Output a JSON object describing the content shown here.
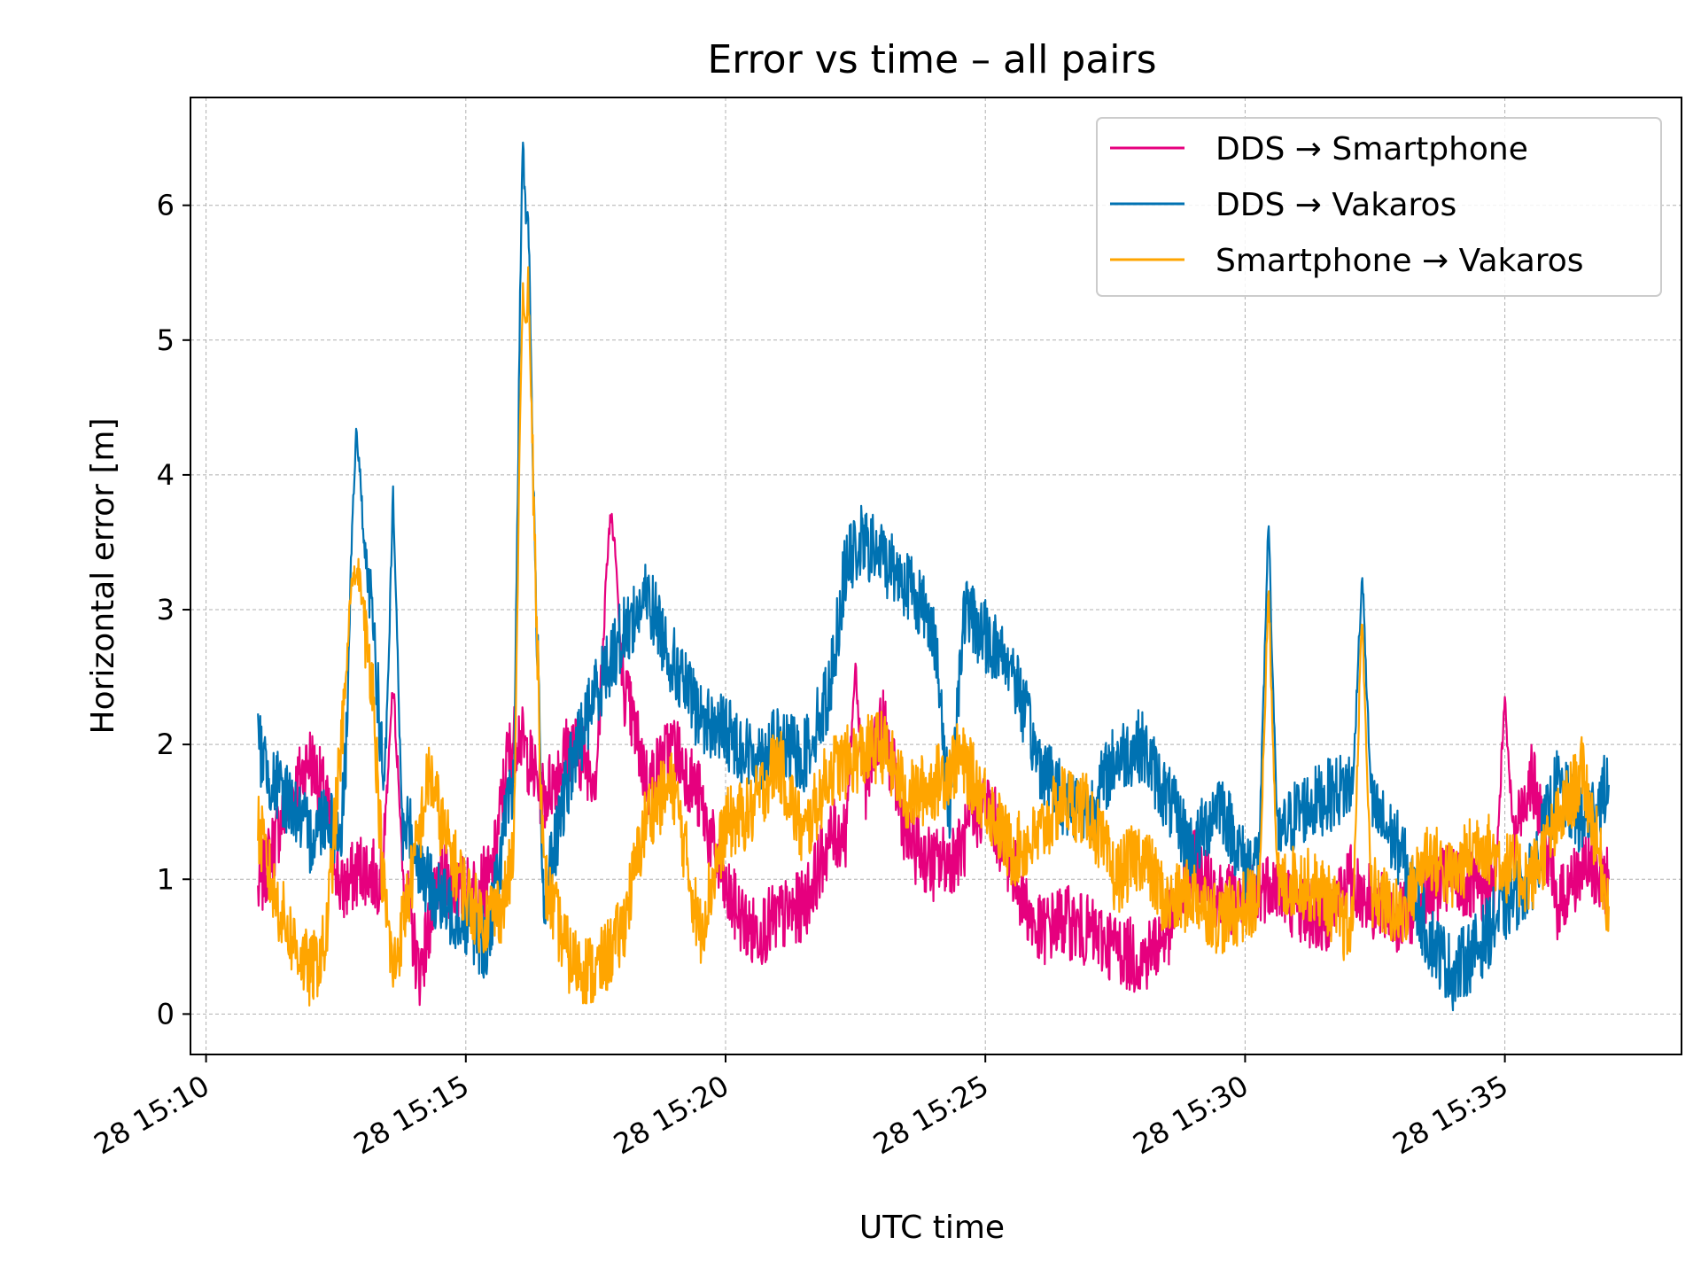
{
  "chart_data": {
    "type": "line",
    "title": "Error vs time – all pairs",
    "xlabel": "UTC time",
    "ylabel": "Horizontal error [m]",
    "x_ticks": [
      "28 15:10",
      "28 15:15",
      "28 15:20",
      "28 15:25",
      "28 15:30",
      "28 15:35"
    ],
    "x_tick_minutes": [
      0,
      5,
      10,
      15,
      20,
      25
    ],
    "xlim_minutes": [
      -0.3,
      28.4
    ],
    "y_ticks": [
      0,
      1,
      2,
      3,
      4,
      5,
      6
    ],
    "ylim": [
      -0.3,
      6.8
    ],
    "grid": true,
    "legend_position": "top-right",
    "series": [
      {
        "name": "DDS → Smartphone",
        "color": "#e6007e",
        "x": [
          1.0,
          1.5,
          2.0,
          2.3,
          2.6,
          3.0,
          3.3,
          3.6,
          3.8,
          4.1,
          4.5,
          5.0,
          5.5,
          5.8,
          6.0,
          6.5,
          7.0,
          7.5,
          7.8,
          8.0,
          8.5,
          9.0,
          9.5,
          10.0,
          10.5,
          11.0,
          11.5,
          12.0,
          12.5,
          13.0,
          13.5,
          14.0,
          14.5,
          15.0,
          15.5,
          16.0,
          16.5,
          17.0,
          17.5,
          18.0,
          18.5,
          19.0,
          19.5,
          20.0,
          20.5,
          21.0,
          21.5,
          22.0,
          22.5,
          23.0,
          23.5,
          24.0,
          24.5,
          25.0,
          25.5,
          26.0,
          26.5,
          27.0
        ],
        "y": [
          0.9,
          1.5,
          1.9,
          1.6,
          0.9,
          1.1,
          1.0,
          1.5,
          1.0,
          0.3,
          1.0,
          0.9,
          1.0,
          1.9,
          2.1,
          1.6,
          2.0,
          1.8,
          3.4,
          2.5,
          1.7,
          2.0,
          1.6,
          0.9,
          0.6,
          0.7,
          0.8,
          1.3,
          1.4,
          2.2,
          1.3,
          1.1,
          1.2,
          1.6,
          1.1,
          0.6,
          0.7,
          0.6,
          0.5,
          0.4,
          0.6,
          1.1,
          0.9,
          0.8,
          1.0,
          0.8,
          0.7,
          1.0,
          0.8,
          0.7,
          0.9,
          1.0,
          0.9,
          1.0,
          1.8,
          0.8,
          1.1,
          1.0
        ],
        "spikes": [
          {
            "x": 3.6,
            "y": 2.4
          },
          {
            "x": 7.8,
            "y": 3.7
          },
          {
            "x": 12.5,
            "y": 2.6
          },
          {
            "x": 25.0,
            "y": 2.4
          }
        ]
      },
      {
        "name": "DDS → Vakaros",
        "color": "#0072b2",
        "x": [
          1.0,
          1.3,
          1.6,
          2.0,
          2.3,
          2.6,
          2.9,
          3.2,
          3.5,
          3.7,
          3.9,
          4.2,
          4.6,
          5.0,
          5.4,
          5.8,
          6.0,
          6.2,
          6.5,
          7.0,
          7.5,
          8.0,
          8.5,
          9.0,
          9.5,
          10.0,
          10.5,
          11.0,
          11.5,
          12.0,
          12.3,
          12.6,
          13.0,
          13.5,
          14.0,
          14.3,
          14.6,
          15.0,
          15.5,
          16.0,
          16.5,
          17.0,
          17.5,
          18.0,
          18.5,
          19.0,
          19.5,
          20.0,
          20.5,
          21.0,
          21.5,
          22.0,
          22.5,
          23.0,
          23.5,
          24.0,
          24.5,
          25.0,
          25.5,
          26.0,
          26.5,
          27.0
        ],
        "y": [
          2.0,
          1.7,
          1.6,
          1.3,
          1.5,
          1.3,
          3.5,
          3.0,
          1.2,
          1.3,
          1.4,
          1.0,
          0.8,
          0.7,
          0.5,
          1.5,
          1.7,
          5.5,
          0.8,
          1.8,
          2.4,
          2.8,
          3.1,
          2.6,
          2.2,
          2.1,
          1.9,
          2.0,
          1.9,
          2.4,
          3.3,
          3.5,
          3.4,
          3.2,
          2.9,
          1.5,
          3.0,
          2.8,
          2.6,
          1.9,
          1.6,
          1.5,
          1.9,
          2.0,
          1.6,
          1.2,
          1.6,
          1.1,
          1.2,
          1.5,
          1.6,
          1.7,
          1.5,
          1.2,
          0.6,
          0.3,
          0.5,
          0.8,
          1.0,
          1.7,
          1.4,
          1.7
        ],
        "spikes": [
          {
            "x": 2.9,
            "y": 4.3
          },
          {
            "x": 3.6,
            "y": 3.9
          },
          {
            "x": 6.1,
            "y": 6.5
          },
          {
            "x": 20.45,
            "y": 3.65
          },
          {
            "x": 22.25,
            "y": 3.3
          }
        ]
      },
      {
        "name": "Smartphone → Vakaros",
        "color": "#ffa500",
        "x": [
          1.0,
          1.3,
          1.6,
          2.0,
          2.3,
          2.6,
          2.9,
          3.2,
          3.4,
          3.6,
          4.0,
          4.3,
          4.6,
          5.0,
          5.3,
          5.7,
          6.0,
          6.2,
          6.5,
          7.0,
          7.5,
          8.0,
          8.5,
          9.0,
          9.5,
          10.0,
          10.5,
          11.0,
          11.5,
          12.0,
          12.5,
          13.0,
          13.5,
          14.0,
          14.5,
          15.0,
          15.5,
          16.0,
          16.5,
          17.0,
          17.5,
          18.0,
          18.5,
          19.0,
          19.5,
          20.0,
          20.5,
          21.0,
          21.5,
          22.0,
          22.5,
          23.0,
          23.5,
          24.0,
          24.5,
          25.0,
          25.5,
          26.0,
          26.5,
          27.0
        ],
        "y": [
          1.4,
          0.9,
          0.6,
          0.3,
          0.5,
          2.0,
          3.2,
          2.5,
          1.0,
          0.3,
          1.1,
          1.8,
          1.3,
          0.9,
          0.7,
          0.8,
          1.3,
          5.3,
          1.0,
          0.4,
          0.3,
          0.6,
          1.5,
          1.7,
          0.6,
          1.4,
          1.5,
          1.9,
          1.3,
          1.8,
          1.9,
          2.0,
          1.6,
          1.7,
          1.9,
          1.6,
          1.2,
          1.3,
          1.6,
          1.5,
          1.0,
          1.2,
          0.8,
          0.9,
          0.7,
          0.8,
          0.9,
          1.0,
          0.9,
          0.6,
          0.9,
          0.7,
          1.2,
          1.0,
          1.3,
          1.1,
          1.0,
          1.4,
          1.8,
          0.8
        ],
        "spikes": [
          {
            "x": 2.85,
            "y": 3.3
          },
          {
            "x": 6.1,
            "y": 5.4
          },
          {
            "x": 20.45,
            "y": 3.15
          },
          {
            "x": 22.25,
            "y": 3.0
          }
        ]
      }
    ]
  }
}
